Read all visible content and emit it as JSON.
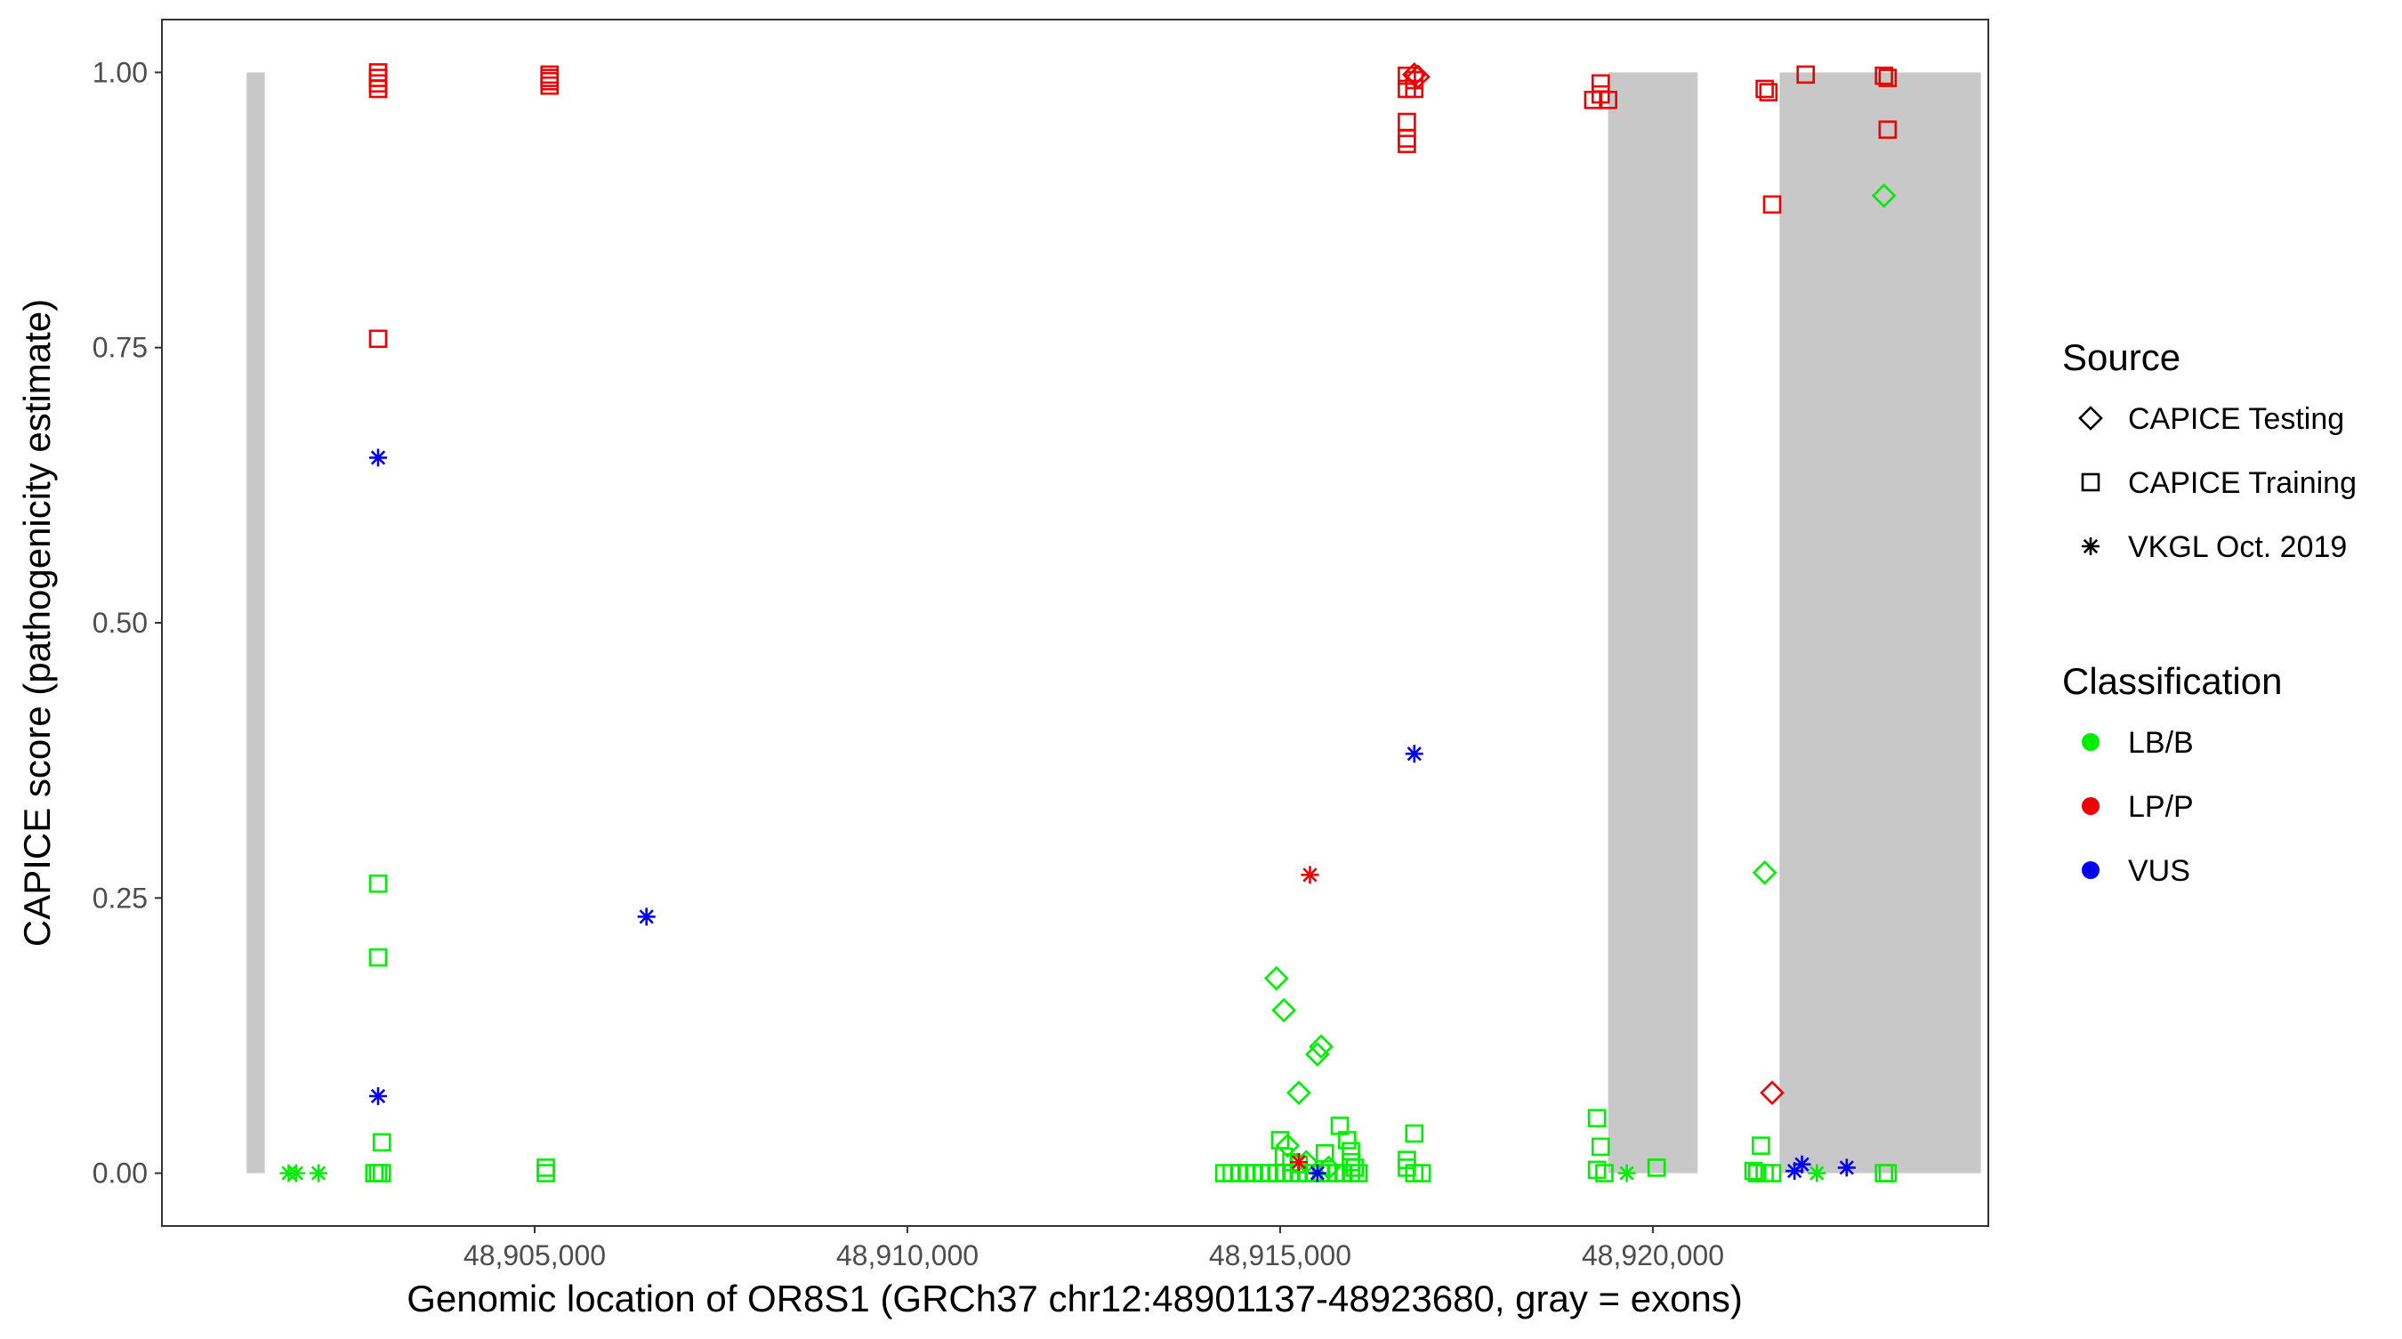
{
  "chart_data": {
    "type": "scatter",
    "title": "",
    "xlabel": "Genomic location of OR8S1 (GRCh37 chr12:48901137-48923680, gray = exons)",
    "ylabel": "CAPICE score (pathogenicity estimate)",
    "xlim": [
      48900000,
      48924500
    ],
    "ylim": [
      -0.048,
      1.048
    ],
    "x_ticks": [
      48905000,
      48910000,
      48915000,
      48920000
    ],
    "x_tick_labels": [
      "48,905,000",
      "48,910,000",
      "48,915,000",
      "48,920,000"
    ],
    "y_ticks": [
      0,
      0.25,
      0.5,
      0.75,
      1.0
    ],
    "y_tick_labels": [
      "0.00",
      "0.25",
      "0.50",
      "0.75",
      "1.00"
    ],
    "grid": false,
    "exons": [
      {
        "start": 48901137,
        "end": 48901380
      },
      {
        "start": 48919400,
        "end": 48920600
      },
      {
        "start": 48921700,
        "end": 48924400
      }
    ],
    "exon_color": "#c8c8c8",
    "legend_position": "right",
    "legend": {
      "source": {
        "title": "Source",
        "items": [
          {
            "label": "CAPICE Testing",
            "shape": "diamond"
          },
          {
            "label": "CAPICE Training",
            "shape": "square"
          },
          {
            "label": "VKGL Oct. 2019",
            "shape": "asterisk"
          }
        ]
      },
      "classification": {
        "title": "Classification",
        "items": [
          {
            "label": "LB/B",
            "color": "#00ee00"
          },
          {
            "label": "LP/P",
            "color": "#ee0000"
          },
          {
            "label": "VUS",
            "color": "#0000ee"
          }
        ]
      }
    },
    "series": [
      {
        "source": "CAPICE Training",
        "classification": "LP/P",
        "points": [
          [
            48902900,
            1.0
          ],
          [
            48902900,
            0.995
          ],
          [
            48902900,
            0.99
          ],
          [
            48902900,
            0.985
          ],
          [
            48902900,
            0.758
          ],
          [
            48905200,
            0.998
          ],
          [
            48905200,
            0.995
          ],
          [
            48905200,
            0.992
          ],
          [
            48905200,
            0.988
          ],
          [
            48916700,
            0.997
          ],
          [
            48916800,
            0.993
          ],
          [
            48916700,
            0.985
          ],
          [
            48916800,
            0.985
          ],
          [
            48916700,
            0.955
          ],
          [
            48916700,
            0.94
          ],
          [
            48916700,
            0.935
          ],
          [
            48919300,
            0.99
          ],
          [
            48919300,
            0.98
          ],
          [
            48919200,
            0.975
          ],
          [
            48919400,
            0.975
          ],
          [
            48921500,
            0.985
          ],
          [
            48921550,
            0.982
          ],
          [
            48922050,
            0.998
          ],
          [
            48921600,
            0.88
          ],
          [
            48923100,
            0.997
          ],
          [
            48923150,
            0.995
          ],
          [
            48923150,
            0.948
          ]
        ]
      },
      {
        "source": "CAPICE Training",
        "classification": "LB/B",
        "points": [
          [
            48902900,
            0.263
          ],
          [
            48902900,
            0.196
          ],
          [
            48902950,
            0.028
          ],
          [
            48902850,
            0.0
          ],
          [
            48902950,
            0.0
          ],
          [
            48902900,
            0.0
          ],
          [
            48905150,
            0.005
          ],
          [
            48905150,
            0.0
          ],
          [
            48914250,
            0.0
          ],
          [
            48914350,
            0.0
          ],
          [
            48914450,
            0.0
          ],
          [
            48914550,
            0.0
          ],
          [
            48914650,
            0.0
          ],
          [
            48914750,
            0.0
          ],
          [
            48914850,
            0.0
          ],
          [
            48914950,
            0.0
          ],
          [
            48915050,
            0.0
          ],
          [
            48915150,
            0.0
          ],
          [
            48915250,
            0.0
          ],
          [
            48915350,
            0.0
          ],
          [
            48915450,
            0.0
          ],
          [
            48915550,
            0.0
          ],
          [
            48915650,
            0.0
          ],
          [
            48915750,
            0.0
          ],
          [
            48915850,
            0.0
          ],
          [
            48915950,
            0.0
          ],
          [
            48916050,
            0.0
          ],
          [
            48915000,
            0.03
          ],
          [
            48915050,
            0.015
          ],
          [
            48915150,
            0.01
          ],
          [
            48915250,
            0.008
          ],
          [
            48915600,
            0.018
          ],
          [
            48915800,
            0.043
          ],
          [
            48915900,
            0.03
          ],
          [
            48915950,
            0.02
          ],
          [
            48915950,
            0.01
          ],
          [
            48916000,
            0.005
          ],
          [
            48916800,
            0.036
          ],
          [
            48916700,
            0.012
          ],
          [
            48916700,
            0.005
          ],
          [
            48916800,
            0.0
          ],
          [
            48916900,
            0.0
          ],
          [
            48919250,
            0.05
          ],
          [
            48919300,
            0.024
          ],
          [
            48919250,
            0.003
          ],
          [
            48919350,
            0.0
          ],
          [
            48920050,
            0.005
          ],
          [
            48921450,
            0.025
          ],
          [
            48921350,
            0.002
          ],
          [
            48921400,
            0.0
          ],
          [
            48921500,
            0.0
          ],
          [
            48921600,
            0.0
          ],
          [
            48923100,
            0.0
          ],
          [
            48923150,
            0.0
          ]
        ]
      },
      {
        "source": "CAPICE Testing",
        "classification": "LP/P",
        "points": [
          [
            48916800,
            0.998
          ],
          [
            48916850,
            0.996
          ],
          [
            48921600,
            0.073
          ]
        ]
      },
      {
        "source": "CAPICE Testing",
        "classification": "LB/B",
        "points": [
          [
            48923100,
            0.888
          ],
          [
            48921500,
            0.273
          ],
          [
            48914950,
            0.177
          ],
          [
            48915050,
            0.148
          ],
          [
            48915550,
            0.115
          ],
          [
            48915500,
            0.108
          ],
          [
            48915250,
            0.073
          ],
          [
            48915100,
            0.025
          ],
          [
            48915350,
            0.01
          ],
          [
            48915650,
            0.005
          ]
        ]
      },
      {
        "source": "VKGL Oct. 2019",
        "classification": "VUS",
        "points": [
          [
            48902900,
            0.65
          ],
          [
            48902900,
            0.07
          ],
          [
            48906500,
            0.233
          ],
          [
            48916800,
            0.381
          ],
          [
            48915500,
            0.0
          ],
          [
            48921900,
            0.002
          ],
          [
            48922000,
            0.008
          ],
          [
            48922600,
            0.005
          ]
        ]
      },
      {
        "source": "VKGL Oct. 2019",
        "classification": "LP/P",
        "points": [
          [
            48915400,
            0.271
          ],
          [
            48915250,
            0.01
          ]
        ]
      },
      {
        "source": "VKGL Oct. 2019",
        "classification": "LB/B",
        "points": [
          [
            48901700,
            0.0
          ],
          [
            48901800,
            0.0
          ],
          [
            48902100,
            0.0
          ],
          [
            48919650,
            0.0
          ],
          [
            48922200,
            0.0
          ]
        ]
      }
    ]
  }
}
